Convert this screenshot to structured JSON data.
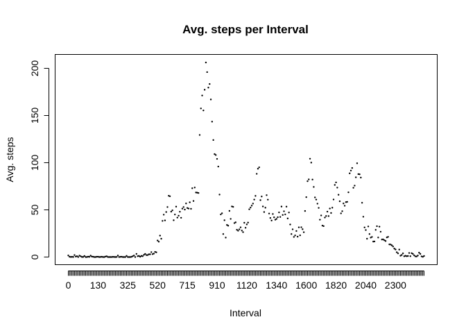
{
  "chart_data": {
    "type": "scatter",
    "title": "Avg. steps per Interval",
    "xlabel": "Interval",
    "ylabel": "Avg. steps",
    "x_tick_labels": [
      "0",
      "130",
      "325",
      "520",
      "715",
      "910",
      "1120",
      "1340",
      "1600",
      "1820",
      "2040",
      "2300"
    ],
    "y_ticks": [
      0,
      50,
      100,
      150,
      200
    ],
    "ylim": [
      0,
      206
    ],
    "grid": false,
    "legend": "none",
    "x_axis": "categorical: 288 five-minute intervals from 0 to 2355, one tick per interval, every 24th labeled",
    "series": [
      {
        "values": [
          1.7,
          0.3,
          0.1,
          0.2,
          0.1,
          2.1,
          0.5,
          0.9,
          0,
          1.5,
          0.8,
          0.1,
          0.1,
          1.1,
          0,
          0,
          0.4,
          0.2,
          1.5,
          0.5,
          0.3,
          0,
          0,
          0.3,
          0.3,
          0,
          0.1,
          0.3,
          0,
          0,
          0.5,
          0.8,
          0,
          0,
          0,
          0,
          0.2,
          0.1,
          0,
          0.1,
          1.6,
          0,
          0.2,
          0.3,
          0,
          0,
          0,
          1.2,
          0,
          0,
          0,
          0.2,
          0.9,
          1.6,
          0,
          3.3,
          0.9,
          1.2,
          0.3,
          1.2,
          0.9,
          2.3,
          3.3,
          2.1,
          2.1,
          2.9,
          2.9,
          5.2,
          3.1,
          3.6,
          5.5,
          5.0,
          17.5,
          16.3,
          22.7,
          19.4,
          38.3,
          44.9,
          38.8,
          47.7,
          53.0,
          64.9,
          64.4,
          48.1,
          49.5,
          39.0,
          45.1,
          53.4,
          41.8,
          43.8,
          48.0,
          41.6,
          51.3,
          53.0,
          50.3,
          56.8,
          52.0,
          51.4,
          58.0,
          51.1,
          72.9,
          59.4,
          73.7,
          68.4,
          68.2,
          67.9,
          129.4,
          157.5,
          171.2,
          155.4,
          177.3,
          206.2,
          196.0,
          179.6,
          183.4,
          167.0,
          143.5,
          124.0,
          109.1,
          108.1,
          104.0,
          95.9,
          66.2,
          45.2,
          46.4,
          24.4,
          39.0,
          20.6,
          34.0,
          33.2,
          48.9,
          40.4,
          53.6,
          53.2,
          36.0,
          36.8,
          28.9,
          27.9,
          29.4,
          31.5,
          28.1,
          26.4,
          36.3,
          31.0,
          34.6,
          36.5,
          50.6,
          52.4,
          54.5,
          56.7,
          60.9,
          64.8,
          88.2,
          93.6,
          95.1,
          60.3,
          64.2,
          53.6,
          47.7,
          52.3,
          65.6,
          60.8,
          46.1,
          41.4,
          38.7,
          45.6,
          42.1,
          39.6,
          40.4,
          42.2,
          47.3,
          42.5,
          53.5,
          44.6,
          48.5,
          45.2,
          53.4,
          40.9,
          47.2,
          34.5,
          24.4,
          29.4,
          21.3,
          22.9,
          27.6,
          21.6,
          31.5,
          23.0,
          31.6,
          29.5,
          26.3,
          48.8,
          63.5,
          80.4,
          82.3,
          104.2,
          100.1,
          82.1,
          74.3,
          63.2,
          60.9,
          56.6,
          52.1,
          39.6,
          44.1,
          33.3,
          32.8,
          41.9,
          43.5,
          48.1,
          43.4,
          51.4,
          46.7,
          52.3,
          61.0,
          76.4,
          79.1,
          73.6,
          66.0,
          59.1,
          46.3,
          48.6,
          56.8,
          54.4,
          58.2,
          58.5,
          68.6,
          88.7,
          91.6,
          94.4,
          73.4,
          75.7,
          84.5,
          99.4,
          87.9,
          87.7,
          84.2,
          57.5,
          42.7,
          31.4,
          28.6,
          19.4,
          32.4,
          24.4,
          20.6,
          21.3,
          16.4,
          16.5,
          28.8,
          32.7,
          20.7,
          32.2,
          26.8,
          18.6,
          18.7,
          17.8,
          17.0,
          20.8,
          21.4,
          13.4,
          13.3,
          12.4,
          11.2,
          9.0,
          8.0,
          5.1,
          3.9,
          7.9,
          1.4,
          2.2,
          3.9,
          0.8,
          1.3,
          0.9,
          1.1,
          4.3,
          0.9,
          4.1,
          3.3,
          1.8,
          0.7,
          0.6,
          1.6,
          4.6,
          3.3,
          0.7,
          0.2,
          1.1
        ]
      }
    ]
  }
}
